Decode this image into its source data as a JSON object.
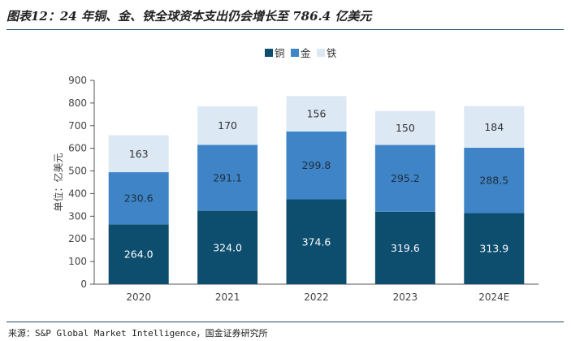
{
  "title": "图表12：24 年铜、金、铁全球资本支出仍会增长至 786.4 亿美元",
  "source": "来源：S&P Global Market Intelligence，国金证券研究所",
  "colors": {
    "rule": "#1e4b6e"
  },
  "chart_data": {
    "type": "bar",
    "stacked": true,
    "categories": [
      "2020",
      "2021",
      "2022",
      "2023",
      "2024E"
    ],
    "series": [
      {
        "name": "铜",
        "values": [
          264.0,
          324.0,
          374.6,
          319.6,
          313.9
        ],
        "color": "#0d4d6e",
        "labels": [
          "264.0",
          "324.0",
          "374.6",
          "319.6",
          "313.9"
        ],
        "label_color": "#ffffff"
      },
      {
        "name": "金",
        "values": [
          230.6,
          291.1,
          299.8,
          295.2,
          288.5
        ],
        "color": "#3f84c6",
        "labels": [
          "230.6",
          "291.1",
          "299.8",
          "295.2",
          "288.5"
        ],
        "label_color": "#1e2e3e"
      },
      {
        "name": "铁",
        "values": [
          163,
          170,
          156,
          150,
          184
        ],
        "color": "#dce8f4",
        "labels": [
          "163",
          "170",
          "156",
          "150",
          "184"
        ],
        "label_color": "#333333"
      }
    ],
    "ylabel": "单位：亿美元",
    "ylim": [
      0,
      900
    ],
    "yticks": [
      0,
      100,
      200,
      300,
      400,
      500,
      600,
      700,
      800,
      900
    ],
    "grid": false,
    "legend": "top-center"
  }
}
